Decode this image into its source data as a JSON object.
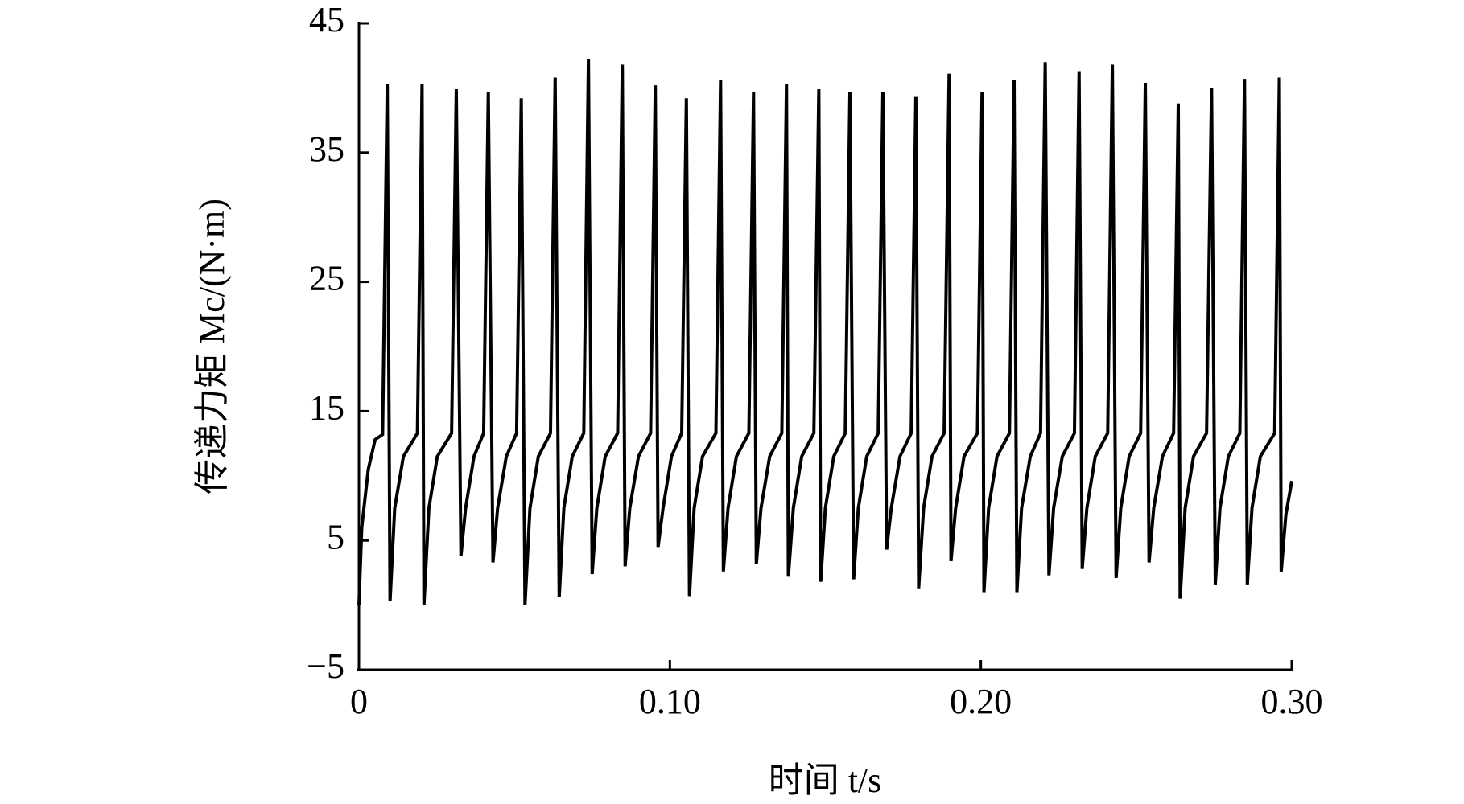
{
  "chart_data": {
    "type": "line",
    "xlabel": "时间 t/s",
    "ylabel": "传递力矩 Mc/(N·m)",
    "color": "#000000",
    "xlim": [
      0,
      0.3
    ],
    "ylim": [
      -5,
      45
    ],
    "xticks": [
      0,
      {
        "value": 0.1,
        "label": "0.10"
      },
      {
        "value": 0.2,
        "label": "0.20"
      },
      {
        "value": 0.3,
        "label": "0.30"
      }
    ],
    "yticks": [
      {
        "value": -5,
        "label": "−5"
      },
      5,
      15,
      25,
      35,
      45
    ],
    "grid": false,
    "x": [
      0,
      0.0009,
      0.003,
      0.0052,
      0.0076,
      0.0091,
      0.01,
      0.0115,
      0.0143,
      0.0188,
      0.0203,
      0.0209,
      0.0225,
      0.0252,
      0.0298,
      0.0313,
      0.0328,
      0.0343,
      0.037,
      0.0401,
      0.0416,
      0.0431,
      0.0446,
      0.0474,
      0.0507,
      0.0522,
      0.0534,
      0.055,
      0.0577,
      0.0616,
      0.0631,
      0.0644,
      0.0659,
      0.0686,
      0.0723,
      0.0738,
      0.075,
      0.0765,
      0.0792,
      0.0832,
      0.0847,
      0.0856,
      0.0871,
      0.0899,
      0.0938,
      0.0953,
      0.0962,
      0.0978,
      0.1005,
      0.1038,
      0.1053,
      0.1063,
      0.1078,
      0.1105,
      0.1148,
      0.1163,
      0.1172,
      0.1187,
      0.1214,
      0.1254,
      0.1269,
      0.1278,
      0.1293,
      0.1321,
      0.136,
      0.1375,
      0.1381,
      0.1397,
      0.1424,
      0.1463,
      0.1479,
      0.1485,
      0.15,
      0.1527,
      0.1564,
      0.1579,
      0.1591,
      0.1606,
      0.1633,
      0.167,
      0.1685,
      0.1697,
      0.1712,
      0.174,
      0.1776,
      0.1791,
      0.18,
      0.1816,
      0.1843,
      0.1882,
      0.1898,
      0.1904,
      0.1919,
      0.1946,
      0.1989,
      0.2004,
      0.201,
      0.2025,
      0.2052,
      0.2092,
      0.2107,
      0.2116,
      0.2131,
      0.2159,
      0.2192,
      0.2207,
      0.2219,
      0.2234,
      0.2262,
      0.2301,
      0.2316,
      0.2326,
      0.2341,
      0.2368,
      0.2408,
      0.2423,
      0.2435,
      0.245,
      0.2477,
      0.2514,
      0.2529,
      0.2541,
      0.2556,
      0.2584,
      0.262,
      0.2635,
      0.2641,
      0.2657,
      0.2684,
      0.2726,
      0.2742,
      0.2754,
      0.2769,
      0.2796,
      0.2833,
      0.2848,
      0.2857,
      0.2872,
      0.2899,
      0.2945,
      0.296,
      0.2966,
      0.2981,
      0.3
    ],
    "values": [
      0,
      6,
      10.5,
      12.8,
      13.2,
      40.3,
      0.3,
      7.5,
      11.5,
      13.3,
      40.3,
      0.0,
      7.5,
      11.5,
      13.3,
      39.9,
      3.8,
      7.5,
      11.5,
      13.3,
      39.7,
      3.3,
      7.5,
      11.5,
      13.3,
      39.2,
      0.0,
      7.5,
      11.5,
      13.3,
      40.8,
      0.6,
      7.5,
      11.5,
      13.3,
      42.2,
      2.4,
      7.5,
      11.5,
      13.3,
      41.8,
      3.0,
      7.5,
      11.5,
      13.3,
      40.2,
      4.5,
      7.5,
      11.5,
      13.3,
      39.2,
      0.7,
      7.5,
      11.5,
      13.3,
      40.6,
      2.6,
      7.5,
      11.5,
      13.3,
      39.7,
      3.2,
      7.5,
      11.5,
      13.3,
      40.3,
      2.2,
      7.5,
      11.5,
      13.3,
      39.9,
      1.8,
      7.5,
      11.5,
      13.3,
      39.7,
      2.0,
      7.5,
      11.5,
      13.3,
      39.7,
      4.3,
      7.5,
      11.5,
      13.3,
      39.3,
      1.3,
      7.5,
      11.5,
      13.3,
      41.1,
      3.4,
      7.5,
      11.5,
      13.3,
      39.7,
      1.0,
      7.5,
      11.5,
      13.3,
      40.6,
      1.0,
      7.5,
      11.5,
      13.3,
      42.0,
      2.3,
      7.5,
      11.5,
      13.3,
      41.3,
      2.8,
      7.5,
      11.5,
      13.3,
      41.8,
      2.1,
      7.5,
      11.5,
      13.3,
      40.4,
      3.3,
      7.5,
      11.5,
      13.3,
      38.8,
      0.5,
      7.5,
      11.5,
      13.3,
      40.0,
      1.6,
      7.5,
      11.5,
      13.3,
      40.7,
      1.6,
      7.5,
      11.5,
      13.3,
      40.8,
      2.6,
      7,
      9.6
    ]
  }
}
